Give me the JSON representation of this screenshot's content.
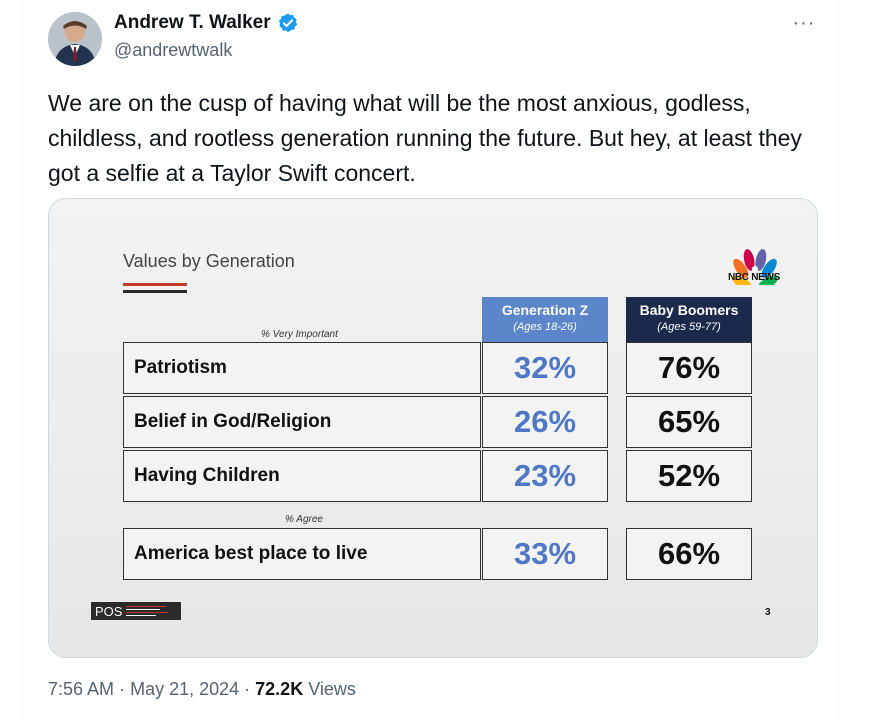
{
  "author": {
    "name": "Andrew T. Walker",
    "handle": "@andrewtwalk",
    "verified": true,
    "verified_color": "#1d9bf0"
  },
  "tweet": {
    "text": "We are on the cusp of having what will be the most anxious, godless, childless, and rootless generation running the future. But hey, at least they got a selfie at a Taylor Swift concert.",
    "more_label": "···"
  },
  "slide": {
    "title": "Values by Generation",
    "logo_text": "NBC NEWS",
    "footer_logo": "POS",
    "page_number": "3",
    "section1_label": "% Very Important",
    "section2_label": "% Agree",
    "columns": [
      {
        "name": "Generation Z",
        "ages": "(Ages 18-26)",
        "color": "#5b86c9"
      },
      {
        "name": "Baby Boomers",
        "ages": "(Ages 59-77)",
        "color": "#1b2a4a"
      }
    ],
    "rows": [
      {
        "label": "Patriotism",
        "gen_z": "32%",
        "boomers": "76%"
      },
      {
        "label": "Belief in God/Religion",
        "gen_z": "26%",
        "boomers": "65%"
      },
      {
        "label": "Having Children",
        "gen_z": "23%",
        "boomers": "52%"
      },
      {
        "label": "America best place to live",
        "gen_z": "33%",
        "boomers": "66%"
      }
    ]
  },
  "meta": {
    "time": "7:56 AM",
    "date": "May 21, 2024",
    "views_count": "72.2K",
    "views_label": "Views"
  }
}
